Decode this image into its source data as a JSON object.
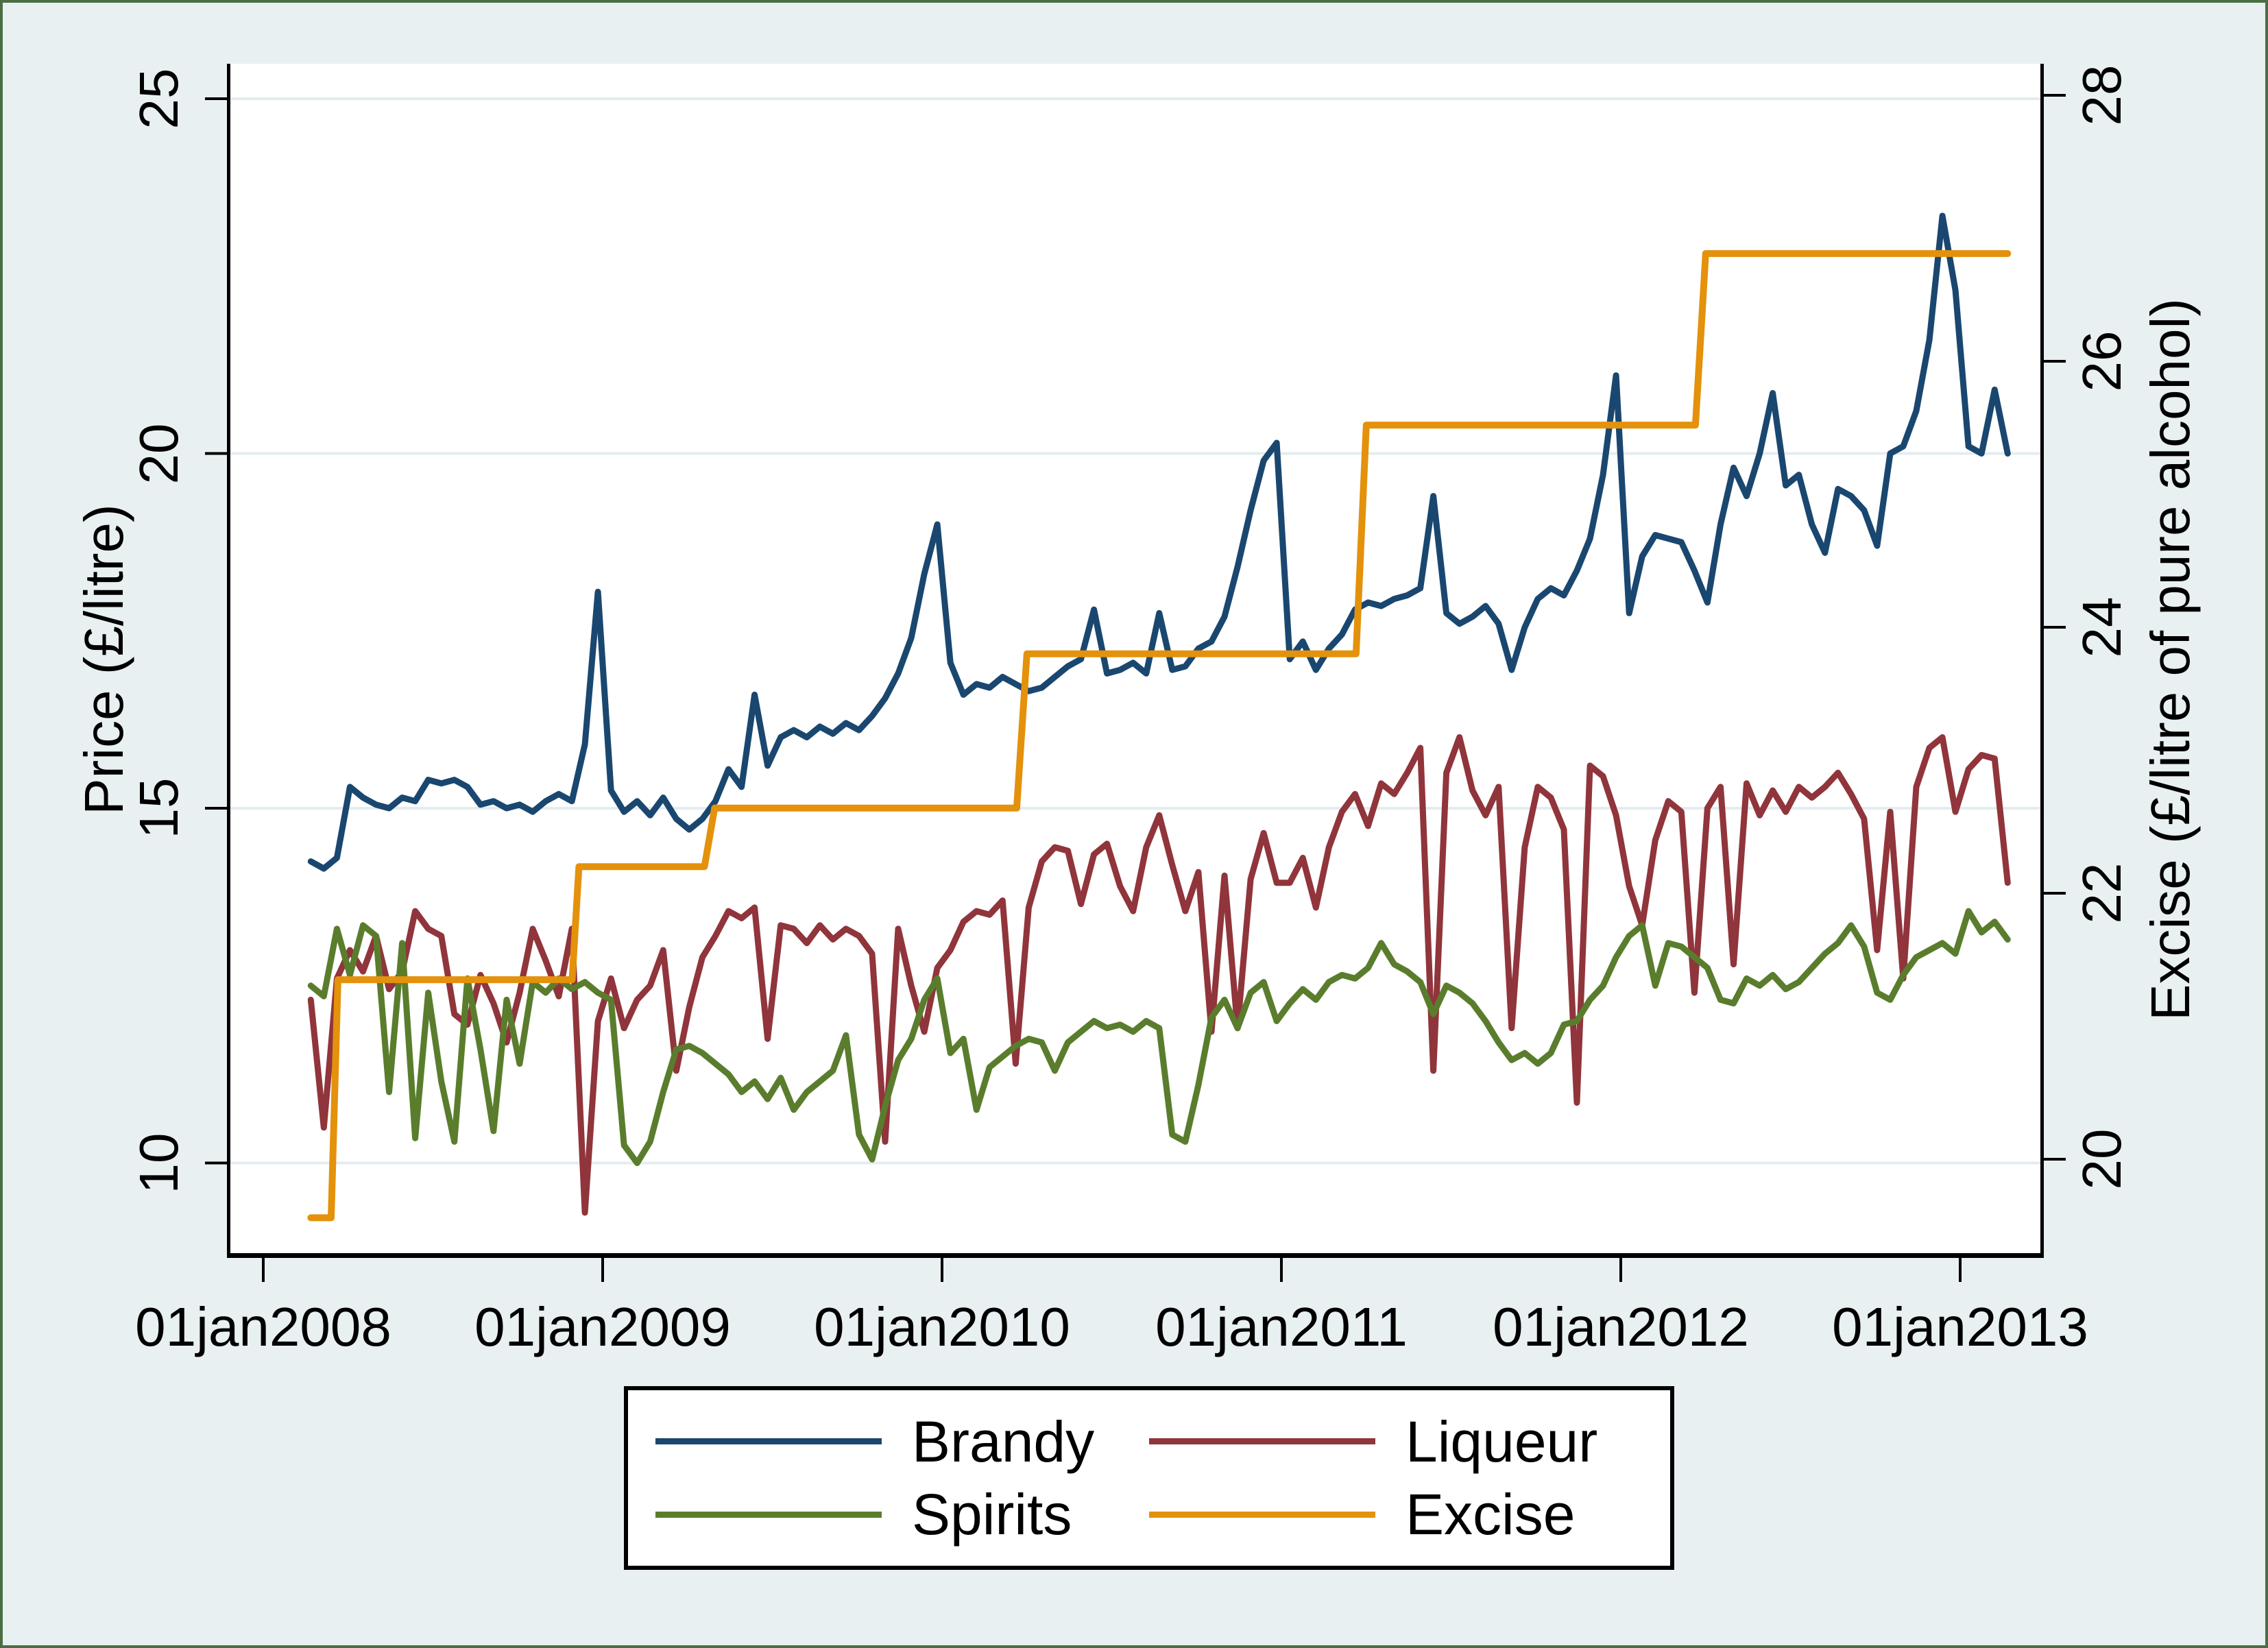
{
  "figure": {
    "background": "#e9f0f2",
    "outer_border_color": "#4a6e44",
    "plot_background": "#ffffff",
    "gridline_color": "#e3edf0",
    "axis_color": "#000000"
  },
  "axes": {
    "left": {
      "title": "Price (£/litre)",
      "ticks": [
        25,
        20,
        15,
        10
      ]
    },
    "right": {
      "title": "Excise (£/litre of pure alcohol)",
      "ticks": [
        28,
        26,
        24,
        22,
        20
      ]
    },
    "x": {
      "tick_labels": [
        "01jan2008",
        "01jan2009",
        "01jan2010",
        "01jan2011",
        "01jan2012",
        "01jan2013"
      ],
      "tick_years": [
        2008,
        2009,
        2010,
        2011,
        2012,
        2013
      ]
    }
  },
  "legend": {
    "items": [
      {
        "label": "Brandy",
        "color": "#1a476f"
      },
      {
        "label": "Liqueur",
        "color": "#90353b"
      },
      {
        "label": "Spirits",
        "color": "#5a7d2d"
      },
      {
        "label": "Excise",
        "color": "#e4910c"
      }
    ]
  },
  "chart_data": {
    "type": "line",
    "title": "",
    "xlabel": "",
    "ylabel_left": "Price (£/litre)",
    "ylabel_right": "Excise (£/litre of pure alcohol)",
    "x_range_years": [
      2007.893,
      2013.246
    ],
    "left_axis_range": [
      8.7,
      25.49
    ],
    "right_axis_range": [
      19.36,
      28.31
    ],
    "grid": "horizontal-left-ticks-only",
    "legend_position": "below",
    "price_series_x_start": 2008.14,
    "price_series_x_step": 0.0384615,
    "series": [
      {
        "name": "Brandy",
        "color": "#1a476f",
        "axis": "left",
        "width": 9,
        "values": [
          14.25,
          14.15,
          14.3,
          15.3,
          15.15,
          15.05,
          15.0,
          15.15,
          15.1,
          15.4,
          15.35,
          15.4,
          15.3,
          15.05,
          15.1,
          15.0,
          15.05,
          14.95,
          15.1,
          15.2,
          15.1,
          15.9,
          18.05,
          15.25,
          14.95,
          15.1,
          14.9,
          15.15,
          14.85,
          14.7,
          14.85,
          15.1,
          15.55,
          15.3,
          16.6,
          15.6,
          16.0,
          16.1,
          16.0,
          16.15,
          16.05,
          16.2,
          16.1,
          16.3,
          16.55,
          16.9,
          17.4,
          18.3,
          19.0,
          17.05,
          16.6,
          16.75,
          16.7,
          16.85,
          16.75,
          16.65,
          16.7,
          16.85,
          17.0,
          17.1,
          17.8,
          16.9,
          16.95,
          17.05,
          16.9,
          17.75,
          16.95,
          17.0,
          17.25,
          17.35,
          17.7,
          18.4,
          19.2,
          19.9,
          20.15,
          17.1,
          17.35,
          16.95,
          17.25,
          17.45,
          17.8,
          17.9,
          17.85,
          17.95,
          18.0,
          18.1,
          19.4,
          17.75,
          17.6,
          17.7,
          17.85,
          17.6,
          16.95,
          17.55,
          17.95,
          18.1,
          18.0,
          18.35,
          18.8,
          19.7,
          21.1,
          17.75,
          18.55,
          18.85,
          18.8,
          18.75,
          18.35,
          17.9,
          19.0,
          19.8,
          19.4,
          20.0,
          20.85,
          19.55,
          19.7,
          19.0,
          18.6,
          19.5,
          19.4,
          19.2,
          18.7,
          20.0,
          20.1,
          20.6,
          21.6,
          23.35,
          22.3,
          20.1,
          20.0,
          20.9,
          20.0
        ]
      },
      {
        "name": "Liqueur",
        "color": "#90353b",
        "axis": "left",
        "width": 9,
        "values": [
          12.3,
          10.5,
          12.6,
          13.0,
          12.7,
          13.2,
          12.45,
          12.7,
          13.55,
          13.3,
          13.2,
          12.1,
          11.95,
          12.65,
          12.25,
          11.7,
          12.4,
          13.3,
          12.85,
          12.35,
          13.3,
          9.3,
          12.0,
          12.6,
          11.9,
          12.3,
          12.5,
          13.0,
          11.3,
          12.2,
          12.9,
          13.2,
          13.55,
          13.45,
          13.6,
          11.75,
          13.35,
          13.3,
          13.1,
          13.35,
          13.15,
          13.3,
          13.2,
          12.95,
          10.3,
          13.3,
          12.5,
          11.85,
          12.75,
          13.0,
          13.4,
          13.55,
          13.5,
          13.7,
          11.4,
          13.6,
          14.25,
          14.45,
          14.4,
          13.65,
          14.35,
          14.5,
          13.9,
          13.55,
          14.45,
          14.9,
          14.2,
          13.55,
          14.1,
          11.85,
          14.05,
          11.9,
          14.0,
          14.65,
          13.95,
          13.95,
          14.3,
          13.6,
          14.45,
          14.95,
          15.2,
          14.75,
          15.35,
          15.2,
          15.5,
          15.85,
          11.3,
          15.5,
          16.0,
          15.25,
          14.9,
          15.3,
          11.9,
          14.45,
          15.3,
          15.15,
          14.7,
          10.85,
          15.6,
          15.45,
          14.9,
          13.9,
          13.35,
          14.55,
          15.1,
          14.95,
          12.4,
          15.0,
          15.3,
          12.8,
          15.35,
          14.9,
          15.25,
          14.95,
          15.3,
          15.15,
          15.3,
          15.5,
          15.2,
          14.85,
          13.0,
          14.95,
          12.6,
          15.3,
          15.85,
          16.0,
          14.95,
          15.55,
          15.75,
          15.7,
          13.95
        ]
      },
      {
        "name": "Spirits",
        "color": "#5a7d2d",
        "axis": "left",
        "width": 9,
        "values": [
          12.5,
          12.35,
          13.3,
          12.65,
          13.35,
          13.2,
          11.0,
          13.1,
          10.35,
          12.4,
          11.15,
          10.3,
          12.6,
          11.6,
          10.45,
          12.3,
          11.4,
          12.55,
          12.4,
          12.6,
          12.45,
          12.55,
          12.4,
          12.3,
          10.25,
          10.0,
          10.3,
          11.0,
          11.6,
          11.65,
          11.55,
          11.4,
          11.25,
          11.0,
          11.15,
          10.9,
          11.2,
          10.75,
          11.0,
          11.15,
          11.3,
          11.8,
          10.4,
          10.05,
          10.8,
          11.45,
          11.75,
          12.3,
          12.6,
          11.55,
          11.75,
          10.75,
          11.35,
          11.5,
          11.65,
          11.75,
          11.7,
          11.3,
          11.7,
          11.85,
          12.0,
          11.9,
          11.95,
          11.85,
          12.0,
          11.9,
          10.4,
          10.3,
          11.1,
          12.05,
          12.3,
          11.9,
          12.4,
          12.55,
          12.0,
          12.25,
          12.45,
          12.3,
          12.55,
          12.65,
          12.6,
          12.75,
          13.1,
          12.8,
          12.7,
          12.55,
          12.1,
          12.5,
          12.4,
          12.25,
          12.0,
          11.7,
          11.45,
          11.55,
          11.4,
          11.55,
          11.95,
          12.0,
          12.3,
          12.5,
          12.9,
          13.2,
          13.35,
          12.5,
          13.1,
          13.05,
          12.9,
          12.75,
          12.3,
          12.25,
          12.6,
          12.5,
          12.65,
          12.45,
          12.55,
          12.75,
          12.95,
          13.1,
          13.35,
          13.05,
          12.4,
          12.3,
          12.65,
          12.9,
          13.0,
          13.1,
          12.95,
          13.55,
          13.25,
          13.4,
          13.15
        ]
      },
      {
        "name": "Excise",
        "color": "#e4910c",
        "axis": "right",
        "width": 10,
        "points": [
          [
            2008.14,
            19.56
          ],
          [
            2008.2,
            19.56
          ],
          [
            2008.22,
            21.35
          ],
          [
            2008.91,
            21.35
          ],
          [
            2008.93,
            22.2
          ],
          [
            2009.3,
            22.2
          ],
          [
            2009.33,
            22.64
          ],
          [
            2010.22,
            22.64
          ],
          [
            2010.25,
            23.8
          ],
          [
            2011.22,
            23.8
          ],
          [
            2011.25,
            25.52
          ],
          [
            2012.22,
            25.52
          ],
          [
            2012.25,
            26.81
          ],
          [
            2013.14,
            26.81
          ]
        ],
        "step_values_note": "UK spirits duty £/litre pure alcohol: 19.56 → 21.35 (Mar2008) → 22.20 (Dec2008) → 22.64 (Apr2009) → 23.80 (Mar2010) → 25.52 (Mar2011) → 26.81 (Mar2012)"
      }
    ]
  }
}
